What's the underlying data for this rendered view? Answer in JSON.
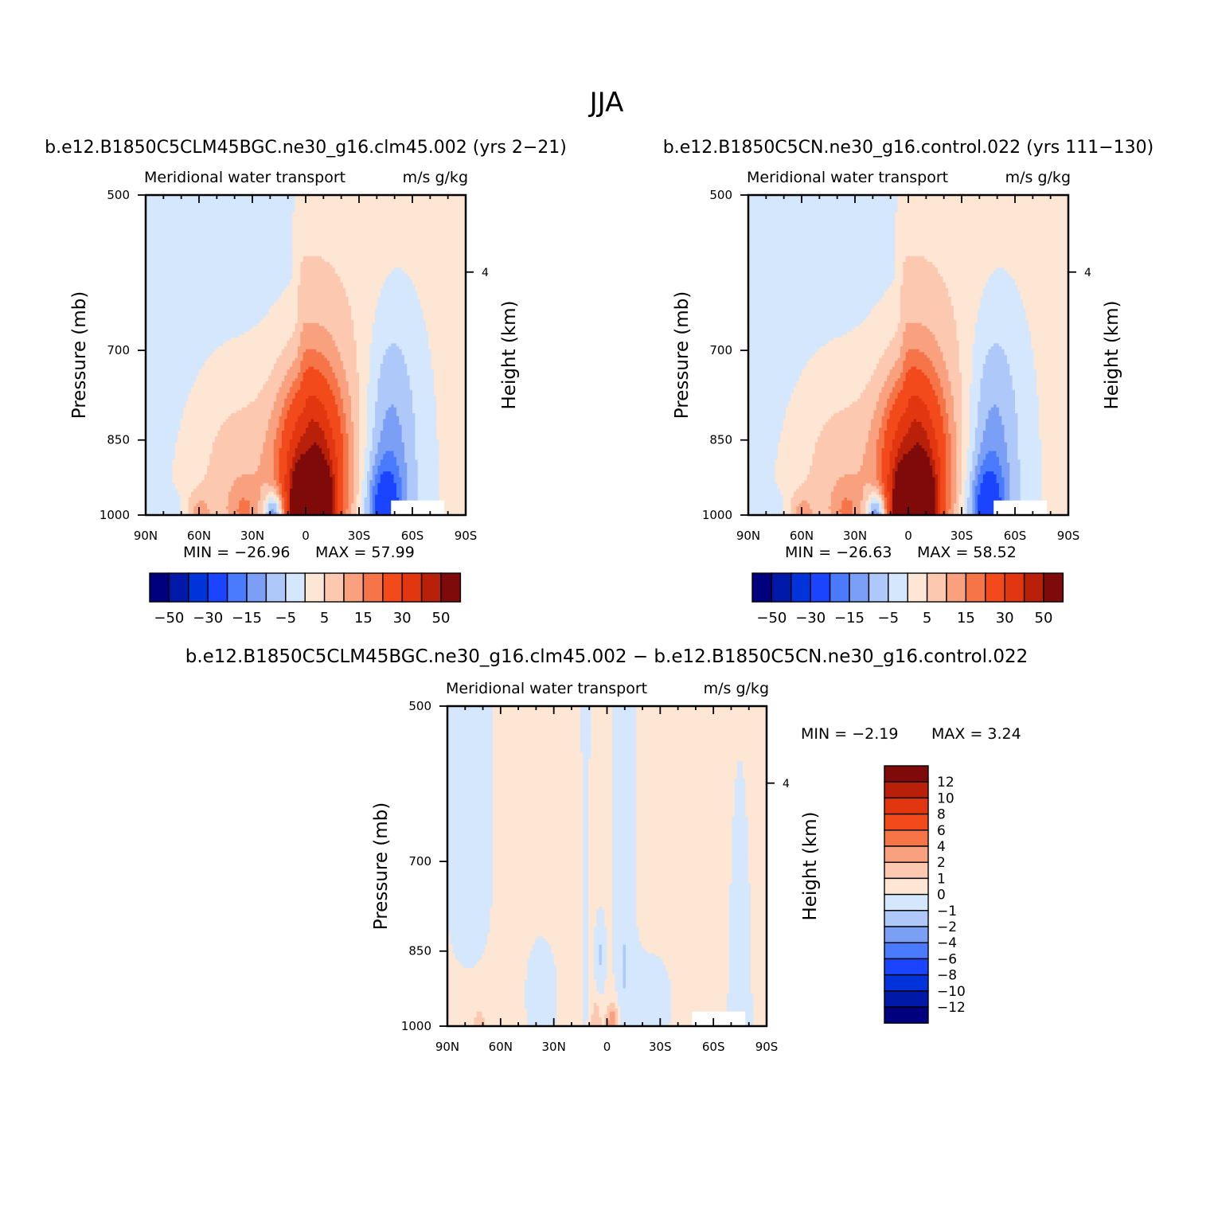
{
  "figure": {
    "title": "JJA",
    "diff_title": "b.e12.B1850C5CLM45BGC.ne30_g16.clm45.002 − b.e12.B1850C5CN.ne30_g16.control.022"
  },
  "chart_data": [
    {
      "type": "heatmap",
      "title": "b.e12.B1850C5CLM45BGC.ne30_g16.clm45.002 (yrs 2−21)",
      "subtitle_left": "Meridional water transport",
      "subtitle_right": "m/s g/kg",
      "xlabel": "",
      "ylabel": "Pressure (mb)",
      "y2label": "Height (km)",
      "xlim": [
        90,
        -90
      ],
      "ylim": [
        1000,
        500
      ],
      "yscale": "log",
      "x_ticks": [
        "90N",
        "60N",
        "30N",
        "0",
        "30S",
        "60S",
        "90S"
      ],
      "y_ticks": [
        "500",
        "700",
        "850",
        "1000"
      ],
      "y2_ticks": [
        "4"
      ],
      "min_label": "MIN = −26.96",
      "max_label": "MAX =   57.99",
      "min": -26.96,
      "max": 57.99,
      "levels": [
        -50,
        -40,
        -30,
        -20,
        -15,
        -10,
        -5,
        0,
        5,
        10,
        15,
        20,
        30,
        40,
        50
      ],
      "colorbar_labels": [
        "−50",
        "−30",
        "−15",
        "−5",
        "5",
        "15",
        "30",
        "50"
      ],
      "colorbar": "horizontal",
      "features": [
        {
          "lat": 2,
          "p": 980,
          "value": 50
        },
        {
          "lat": -8,
          "p": 980,
          "value": 58
        },
        {
          "lat": 8,
          "p": 900,
          "value": 30
        },
        {
          "lat": -20,
          "p": 900,
          "value": 15
        },
        {
          "lat": 28,
          "p": 880,
          "value": 10
        },
        {
          "lat": 45,
          "p": 870,
          "value": 5
        },
        {
          "lat": 18,
          "p": 990,
          "value": -27
        },
        {
          "lat": -43,
          "p": 980,
          "value": -15
        },
        {
          "lat": -50,
          "p": 900,
          "value": -5
        }
      ]
    },
    {
      "type": "heatmap",
      "title": "b.e12.B1850C5CN.ne30_g16.control.022 (yrs 111−130)",
      "subtitle_left": "Meridional water transport",
      "subtitle_right": "m/s g/kg",
      "xlabel": "",
      "ylabel": "Pressure (mb)",
      "y2label": "Height (km)",
      "xlim": [
        90,
        -90
      ],
      "ylim": [
        1000,
        500
      ],
      "yscale": "log",
      "x_ticks": [
        "90N",
        "60N",
        "30N",
        "0",
        "30S",
        "60S",
        "90S"
      ],
      "y_ticks": [
        "500",
        "700",
        "850",
        "1000"
      ],
      "y2_ticks": [
        "4"
      ],
      "min_label": "MIN = −26.63",
      "max_label": "MAX =   58.52",
      "min": -26.63,
      "max": 58.52,
      "levels": [
        -50,
        -40,
        -30,
        -20,
        -15,
        -10,
        -5,
        0,
        5,
        10,
        15,
        20,
        30,
        40,
        50
      ],
      "colorbar_labels": [
        "−50",
        "−30",
        "−15",
        "−5",
        "5",
        "15",
        "30",
        "50"
      ],
      "colorbar": "horizontal",
      "features": [
        {
          "lat": 2,
          "p": 980,
          "value": 50
        },
        {
          "lat": -8,
          "p": 980,
          "value": 58
        },
        {
          "lat": 8,
          "p": 900,
          "value": 30
        },
        {
          "lat": -20,
          "p": 900,
          "value": 15
        },
        {
          "lat": 28,
          "p": 880,
          "value": 10
        },
        {
          "lat": 45,
          "p": 870,
          "value": 5
        },
        {
          "lat": 18,
          "p": 990,
          "value": -27
        },
        {
          "lat": -43,
          "p": 980,
          "value": -15
        },
        {
          "lat": -50,
          "p": 900,
          "value": -5
        }
      ]
    },
    {
      "type": "heatmap",
      "title": "",
      "subtitle_left": "Meridional water transport",
      "subtitle_right": "m/s g/kg",
      "xlabel": "",
      "ylabel": "Pressure (mb)",
      "y2label": "Height (km)",
      "xlim": [
        90,
        -90
      ],
      "ylim": [
        1000,
        500
      ],
      "yscale": "log",
      "x_ticks": [
        "90N",
        "60N",
        "30N",
        "0",
        "30S",
        "60S",
        "90S"
      ],
      "y_ticks": [
        "500",
        "700",
        "850",
        "1000"
      ],
      "y2_ticks": [
        "4"
      ],
      "min_label": "MIN =   −2.19",
      "max_label": "MAX =    3.24",
      "min": -2.19,
      "max": 3.24,
      "levels": [
        -12,
        -10,
        -8,
        -6,
        -4,
        -2,
        -1,
        0,
        1,
        2,
        4,
        6,
        8,
        10,
        12
      ],
      "colorbar_labels": [
        "12",
        "10",
        "8",
        "6",
        "4",
        "2",
        "1",
        "0",
        "−1",
        "−2",
        "−4",
        "−6",
        "−8",
        "−10",
        "−12"
      ],
      "colorbar": "vertical",
      "features": [
        {
          "lat": -4,
          "p": 975,
          "value": 3.24
        },
        {
          "lat": 6,
          "p": 890,
          "value": -2.19
        }
      ]
    }
  ],
  "colors": {
    "levels_fill": [
      "#00007f",
      "#0019a8",
      "#0033d9",
      "#1a44ff",
      "#4a7bff",
      "#7a9ff5",
      "#aec8fa",
      "#d4e7fc",
      "#fde6d4",
      "#fcc8b0",
      "#f9a07e",
      "#f57448",
      "#f24a1a",
      "#e23610",
      "#b8200a",
      "#7f0a0a"
    ],
    "missing": "#ffffff"
  }
}
